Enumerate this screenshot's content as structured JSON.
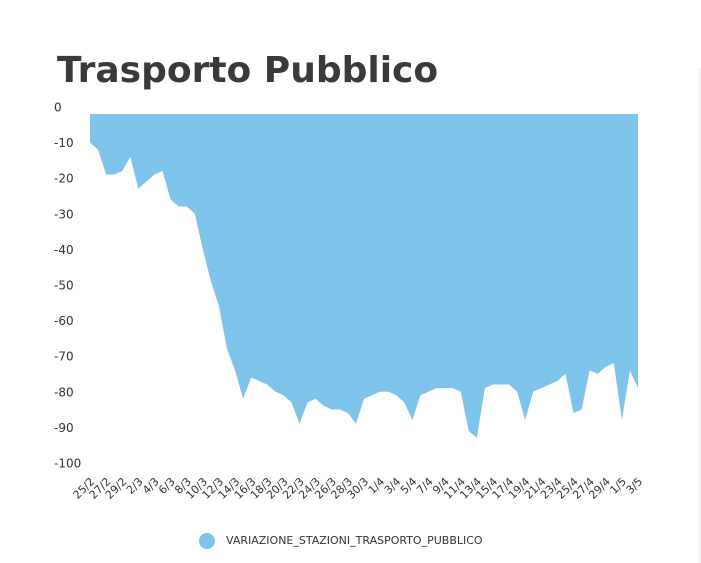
{
  "chart_data": {
    "type": "area",
    "title": "Trasporto Pubblico",
    "categories": [
      "25/2",
      null,
      "27/2",
      null,
      "29/2",
      null,
      "2/3",
      null,
      "4/3",
      null,
      "6/3",
      null,
      "8/3",
      null,
      "10/3",
      null,
      "12/3",
      null,
      "14/3",
      null,
      "16/3",
      null,
      "18/3",
      null,
      "20/3",
      null,
      "22/3",
      null,
      "24/3",
      null,
      "26/3",
      null,
      "28/3",
      null,
      "30/3",
      null,
      "1/4",
      null,
      "3/4",
      null,
      "5/4",
      null,
      "7/4",
      null,
      "9/4",
      null,
      "11/4",
      null,
      "13/4",
      null,
      "15/4",
      null,
      "17/4",
      null,
      "19/4",
      null,
      "21/4",
      null,
      "23/4",
      null,
      "25/4",
      null,
      "27/4",
      null,
      "29/4",
      null,
      "1/5",
      null,
      "3/5"
    ],
    "series": [
      {
        "name": "VARIAZIONE_STAZIONI_TRASPORTO_PUBBLICO",
        "color": "#7fc4ea",
        "values": [
          -8,
          -10,
          -17,
          -17,
          -16,
          -12,
          -21,
          -19,
          -17,
          -16,
          -24,
          -26,
          -26,
          -28,
          -38,
          -47,
          -54,
          -66,
          -72,
          -80,
          -74,
          -75,
          -76,
          -78,
          -79,
          -81,
          -87,
          -81,
          -80,
          -82,
          -83,
          -83,
          -84,
          -87,
          -80,
          -79,
          -78,
          -78,
          -79,
          -81,
          -86,
          -79,
          -78,
          -77,
          -77,
          -77,
          -78,
          -89,
          -91,
          -77,
          -76,
          -76,
          -76,
          -78,
          -86,
          -78,
          -77,
          -76,
          -75,
          -73,
          -84,
          -83,
          -72,
          -73,
          -71,
          -70,
          -86,
          -72,
          -77
        ]
      }
    ],
    "ylim": [
      -100,
      0
    ],
    "yticks": [
      0,
      -10,
      -20,
      -30,
      -40,
      -50,
      -60,
      -70,
      -80,
      -90,
      -100
    ],
    "grid": false,
    "legend": "bottom"
  }
}
